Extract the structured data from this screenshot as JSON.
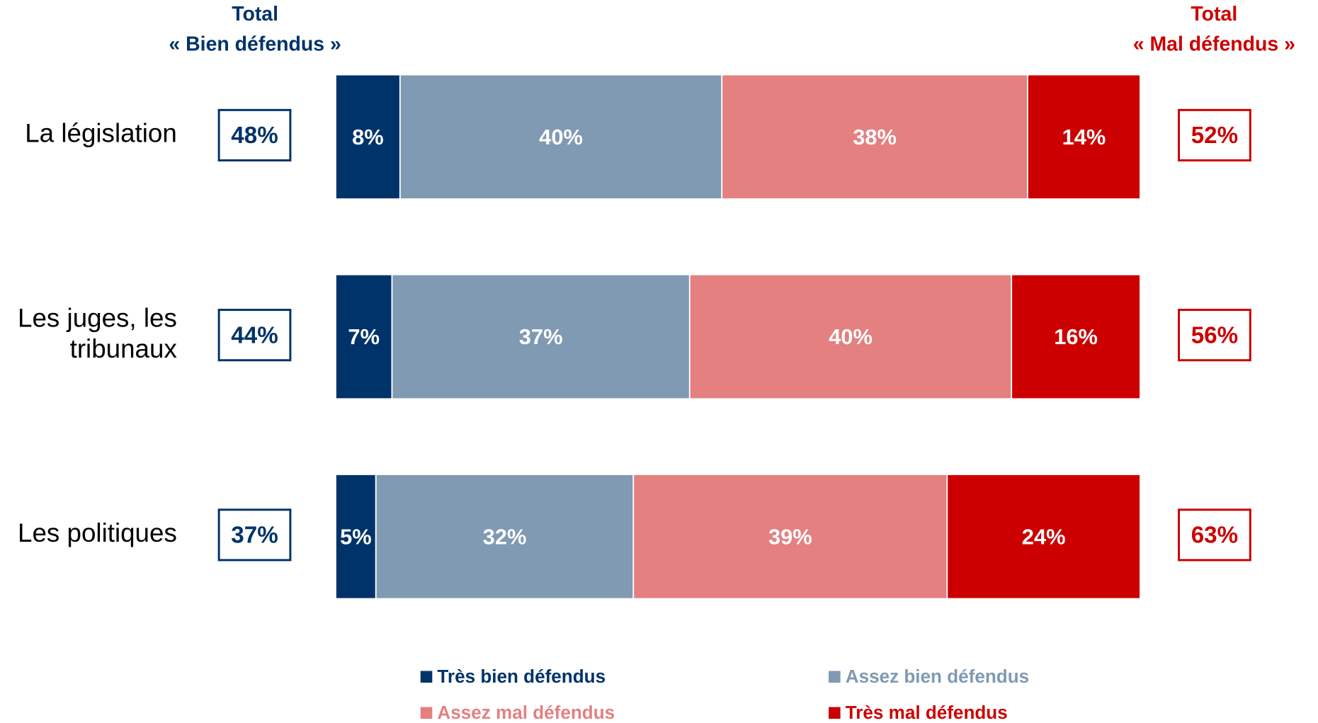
{
  "chart_data": {
    "type": "stacked_bar",
    "orientation": "horizontal",
    "categories": [
      "La législation",
      "Les juges, les tribunaux",
      "Les politiques"
    ],
    "xlim": [
      0,
      100
    ],
    "series": [
      {
        "name": "Très bien défendus",
        "color": "#00336a",
        "values": [
          8,
          7,
          5
        ],
        "value_labels": [
          "8%",
          "7%",
          "5%"
        ]
      },
      {
        "name": "Assez bien défendus",
        "color": "#7f9ab2",
        "values": [
          40,
          37,
          32
        ],
        "value_labels": [
          "40%",
          "37%",
          "32%"
        ]
      },
      {
        "name": "Assez mal défendus",
        "color": "#e48080",
        "values": [
          38,
          40,
          39
        ],
        "value_labels": [
          "38%",
          "40%",
          "39%"
        ]
      },
      {
        "name": "Très mal défendus",
        "color": "#cc0000",
        "values": [
          14,
          16,
          24
        ],
        "value_labels": [
          "14%",
          "16%",
          "24%"
        ]
      }
    ],
    "totals": [
      {
        "title": "Total",
        "subtitle": "« Bien défendus »",
        "color": "#00336a",
        "values": [
          48,
          44,
          37
        ],
        "value_labels": [
          "48%",
          "44%",
          "37%"
        ]
      },
      {
        "title": "Total",
        "subtitle": "« Mal défendus »",
        "color": "#cc0000",
        "values": [
          52,
          56,
          63
        ],
        "value_labels": [
          "52%",
          "56%",
          "63%"
        ]
      }
    ]
  }
}
